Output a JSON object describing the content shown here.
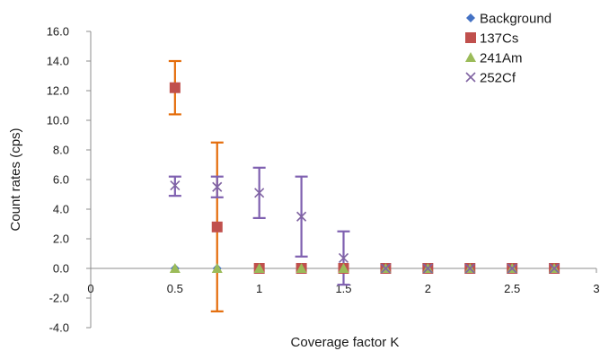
{
  "chart_data": {
    "type": "scatter",
    "title": "",
    "xlabel": "Coverage factor K",
    "ylabel": "Count rates (cps)",
    "xlim": [
      0,
      3
    ],
    "ylim": [
      -4,
      16
    ],
    "x_ticks": [
      "0",
      "0.5",
      "1",
      "1.5",
      "2",
      "2.5",
      "3"
    ],
    "y_ticks": [
      "-4.0",
      "-2.0",
      "0.0",
      "2.0",
      "4.0",
      "6.0",
      "8.0",
      "10.0",
      "12.0",
      "14.0",
      "16.0"
    ],
    "grid": false,
    "legend_position": "top-right",
    "series": [
      {
        "name": "Background",
        "marker": "diamond",
        "color": "#4472C4",
        "points": [
          {
            "x": 0.5,
            "y": 0.0
          },
          {
            "x": 0.75,
            "y": 0.0
          },
          {
            "x": 1.0,
            "y": 0.0
          },
          {
            "x": 1.25,
            "y": 0.0
          },
          {
            "x": 1.5,
            "y": 0.0
          },
          {
            "x": 1.75,
            "y": 0.0
          },
          {
            "x": 2.0,
            "y": 0.0
          },
          {
            "x": 2.25,
            "y": 0.0
          },
          {
            "x": 2.5,
            "y": 0.0
          },
          {
            "x": 2.75,
            "y": 0.0
          }
        ]
      },
      {
        "name": "137Cs",
        "marker": "square",
        "color": "#C0504D",
        "error_color": "#E46C0A",
        "points": [
          {
            "x": 0.5,
            "y": 12.2,
            "err_low": 10.4,
            "err_high": 14.0
          },
          {
            "x": 0.75,
            "y": 2.8,
            "err_low": -2.9,
            "err_high": 8.5
          },
          {
            "x": 1.0,
            "y": 0.0
          },
          {
            "x": 1.25,
            "y": 0.0
          },
          {
            "x": 1.5,
            "y": 0.0
          },
          {
            "x": 1.75,
            "y": 0.0
          },
          {
            "x": 2.0,
            "y": 0.0
          },
          {
            "x": 2.25,
            "y": 0.0
          },
          {
            "x": 2.5,
            "y": 0.0
          },
          {
            "x": 2.75,
            "y": 0.0
          }
        ]
      },
      {
        "name": "241Am",
        "marker": "triangle",
        "color": "#9BBB59",
        "points": [
          {
            "x": 0.5,
            "y": 0.0
          },
          {
            "x": 0.75,
            "y": 0.0
          },
          {
            "x": 1.0,
            "y": 0.0
          },
          {
            "x": 1.25,
            "y": 0.0
          },
          {
            "x": 1.5,
            "y": 0.0
          },
          {
            "x": 1.75,
            "y": 0.0
          },
          {
            "x": 2.0,
            "y": 0.0
          },
          {
            "x": 2.25,
            "y": 0.0
          },
          {
            "x": 2.5,
            "y": 0.0
          },
          {
            "x": 2.75,
            "y": 0.0
          }
        ]
      },
      {
        "name": "252Cf",
        "marker": "cross",
        "color": "#8064A2",
        "error_color": "#7F60B0",
        "points": [
          {
            "x": 0.5,
            "y": 5.6,
            "err_low": 4.9,
            "err_high": 6.2
          },
          {
            "x": 0.75,
            "y": 5.5,
            "err_low": 4.8,
            "err_high": 6.2
          },
          {
            "x": 1.0,
            "y": 5.1,
            "err_low": 3.4,
            "err_high": 6.8
          },
          {
            "x": 1.25,
            "y": 3.5,
            "err_low": 0.8,
            "err_high": 6.2
          },
          {
            "x": 1.5,
            "y": 0.7,
            "err_low": -1.1,
            "err_high": 2.5
          },
          {
            "x": 1.75,
            "y": 0.0
          },
          {
            "x": 2.0,
            "y": 0.0
          },
          {
            "x": 2.25,
            "y": 0.0
          },
          {
            "x": 2.5,
            "y": 0.0
          },
          {
            "x": 2.75,
            "y": 0.0
          }
        ]
      }
    ]
  }
}
